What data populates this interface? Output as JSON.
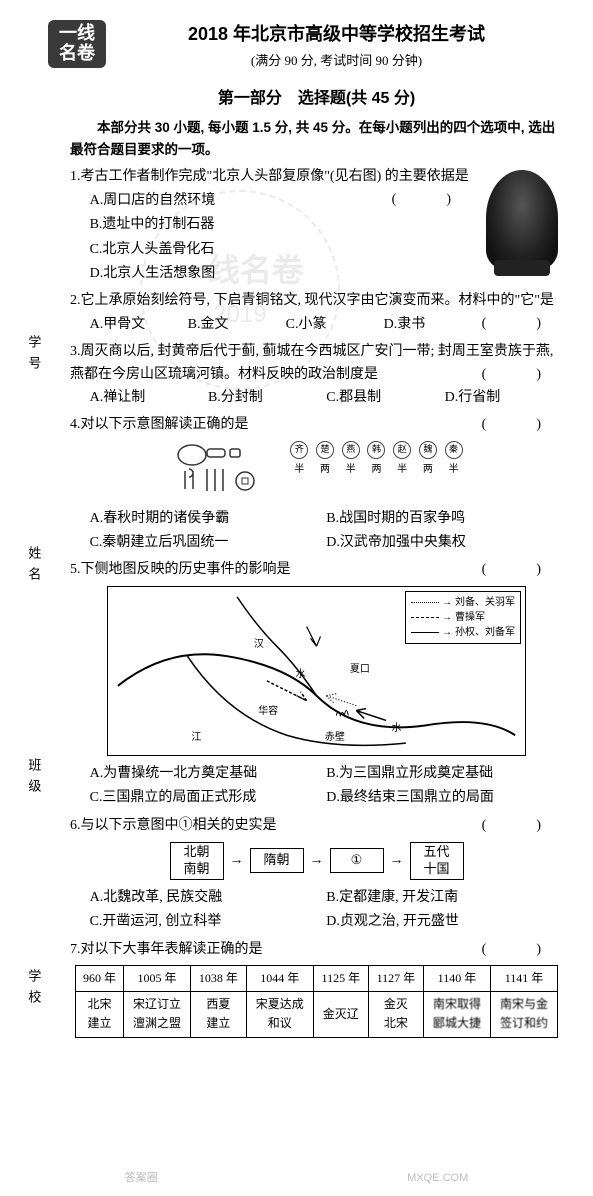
{
  "brand": {
    "line1": "一线",
    "line2": "名卷"
  },
  "side_labels": [
    "学号",
    "姓名",
    "班级",
    "学校"
  ],
  "header": {
    "title": "2018 年北京市高级中等学校招生考试",
    "subtitle": "(满分 90 分, 考试时间 90 分钟)"
  },
  "part": {
    "title": "第一部分　选择题(共 45 分)",
    "intro": "本部分共 30 小题, 每小题 1.5 分, 共 45 分。在每小题列出的四个选项中, 选出最符合题目要求的一项。"
  },
  "watermark": {
    "text": "一线名卷",
    "year": "2019"
  },
  "q1": {
    "stem": "1.考古工作者制作完成\"北京人头部复原像\"(见右图) 的主要依据是",
    "a": "A.周口店的自然环境",
    "b": "B.遗址中的打制石器",
    "c": "C.北京人头盖骨化石",
    "d": "D.北京人生活想象图"
  },
  "q2": {
    "stem": "2.它上承原始刻绘符号, 下启青铜铭文, 现代汉字由它演变而来。材料中的\"它\"是",
    "a": "A.甲骨文",
    "b": "B.金文",
    "c": "C.小篆",
    "d": "D.隶书"
  },
  "q3": {
    "stem": "3.周灭商以后, 封黄帝后代于蓟, 蓟城在今西城区广安门一带; 封周王室贵族于燕, 燕都在今房山区琉璃河镇。材料反映的政治制度是",
    "a": "A.禅让制",
    "b": "B.分封制",
    "c": "C.郡县制",
    "d": "D.行省制"
  },
  "q4": {
    "stem": "4.对以下示意图解读正确的是",
    "a": "A.春秋时期的诸侯争霸",
    "b": "B.战国时期的百家争鸣",
    "c": "C.秦朝建立后巩固统一",
    "d": "D.汉武帝加强中央集权",
    "seal_top": [
      "齐",
      "楚",
      "燕",
      "韩",
      "赵",
      "魏",
      "秦"
    ],
    "seal_bot": [
      "半",
      "两",
      "半",
      "两",
      "半",
      "两",
      "半"
    ]
  },
  "q5": {
    "stem": "5.下侧地图反映的历史事件的影响是",
    "a": "A.为曹操统一北方奠定基础",
    "b": "B.为三国鼎立形成奠定基础",
    "c": "C.三国鼎立的局面正式形成",
    "d": "D.最终结束三国鼎立的局面",
    "legend": {
      "l1": "刘备、关羽军",
      "l2": "曹操军",
      "l3": "孙权、刘备军"
    },
    "map_labels": {
      "han": "汉",
      "shui1": "水",
      "xiakou": "夏口",
      "jiang": "江",
      "huarong": "华容",
      "chibi": "赤壁",
      "shui2": "水"
    }
  },
  "q6": {
    "stem": "6.与以下示意图中①相关的史实是",
    "a": "A.北魏改革, 民族交融",
    "b": "B.定都建康, 开发江南",
    "c": "C.开凿运河, 创立科举",
    "d": "D.贞观之治, 开元盛世",
    "nodes": {
      "n1a": "北朝",
      "n1b": "南朝",
      "n2": "隋朝",
      "n3": "①",
      "n4a": "五代",
      "n4b": "十国"
    }
  },
  "q7": {
    "stem": "7.对以下大事年表解读正确的是",
    "years": [
      "960 年",
      "1005 年",
      "1038 年",
      "1044 年",
      "1125 年",
      "1127 年",
      "1140 年",
      "1141 年"
    ],
    "cells": [
      "北宋\n建立",
      "宋辽订立\n澶渊之盟",
      "西夏\n建立",
      "宋夏达成\n和议",
      "金灭辽",
      "金灭\n北宋",
      "南宋取得\n郾城大捷",
      "南宋与金\n签订和约"
    ]
  },
  "footer": {
    "left": "答案圈",
    "right": "MXQE.COM"
  }
}
